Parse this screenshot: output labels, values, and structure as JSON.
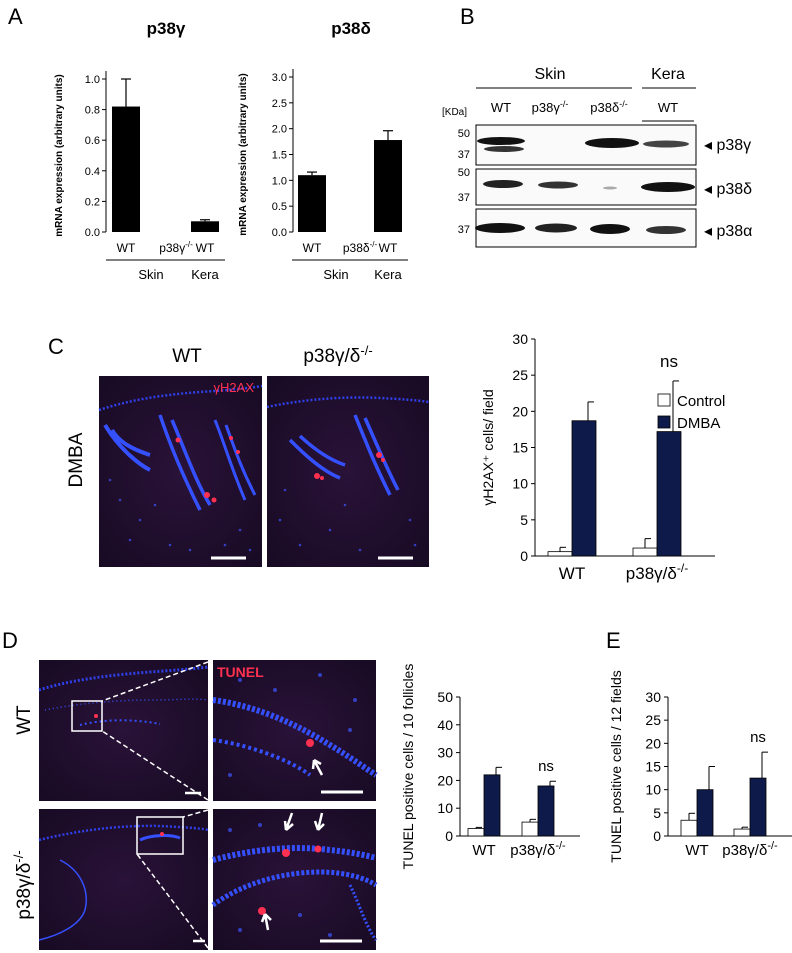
{
  "panel_labels": {
    "a": "A",
    "b": "B",
    "c": "C",
    "d": "D",
    "e": "E"
  },
  "colors": {
    "dmba": "#0d1a4a",
    "control": "#ffffff",
    "bar_black": "#000000",
    "tissue_bg": "#241030",
    "nuclei": "#2a3ee0",
    "stain": "#ff3050"
  },
  "blot": {
    "group_skin": "Skin",
    "group_kera": "Kera",
    "kda_label": "[KDa]",
    "lanes": [
      "WT",
      "p38γ",
      "p38δ",
      "WT"
    ],
    "lane_sups": [
      "",
      "-/-",
      "-/-",
      ""
    ],
    "rows": [
      {
        "label": "p38γ",
        "markers": [
          "50",
          "37"
        ]
      },
      {
        "label": "p38δ",
        "markers": [
          "50",
          "37"
        ]
      },
      {
        "label": "p38α",
        "markers": [
          "37"
        ]
      }
    ]
  },
  "micrographs": {
    "c_col_wt": "WT",
    "c_col_ko": "p38γ/δ",
    "c_col_ko_sup": "-/-",
    "c_row": "DMBA",
    "c_stain": "γH2AX",
    "d_row_wt": "WT",
    "d_row_ko": "p38γ/δ",
    "d_row_ko_sup": "-/-",
    "d_stain": "TUNEL"
  },
  "chart_data": [
    {
      "id": "A1",
      "type": "bar",
      "title": "p38γ",
      "ylabel": "mRNA expression (arbitrary units)",
      "ylim": [
        0,
        1.0
      ],
      "yticks": [
        "0.0",
        "0.2",
        "0.4",
        "0.6",
        "0.8",
        "1.0"
      ],
      "categories": [
        "WT",
        "p38γ",
        "WT"
      ],
      "category_sups": [
        "",
        "-/-",
        ""
      ],
      "groups": [
        {
          "label": "Skin",
          "span": [
            0,
            1
          ]
        },
        {
          "label": "Kera",
          "span": [
            2,
            2
          ]
        }
      ],
      "values": [
        0.82,
        0,
        0.07
      ],
      "errors": [
        0.18,
        0,
        0.01
      ]
    },
    {
      "id": "A2",
      "type": "bar",
      "title": "p38δ",
      "ylabel": "mRNA expression (arbitrary units)",
      "ylim": [
        0,
        3.0
      ],
      "yticks": [
        "0.0",
        "0.5",
        "1.0",
        "1.5",
        "2.0",
        "2.5",
        "3.0"
      ],
      "categories": [
        "WT",
        "p38δ",
        "WT"
      ],
      "category_sups": [
        "",
        "-/-",
        ""
      ],
      "groups": [
        {
          "label": "Skin",
          "span": [
            0,
            1
          ]
        },
        {
          "label": "Kera",
          "span": [
            2,
            2
          ]
        }
      ],
      "values": [
        1.1,
        0,
        1.78
      ],
      "errors": [
        0.06,
        0,
        0.18
      ]
    },
    {
      "id": "C",
      "type": "bar",
      "ylabel": "γH2AX⁺ cells/ field",
      "ylim": [
        0,
        30
      ],
      "yticks": [
        "0",
        "5",
        "10",
        "15",
        "20",
        "25",
        "30"
      ],
      "categories": [
        "WT",
        "p38γ/δ"
      ],
      "category_sups": [
        "",
        "-/-"
      ],
      "legend": [
        "Control",
        "DMBA"
      ],
      "series": [
        {
          "name": "Control",
          "values": [
            0.6,
            1.1
          ],
          "errors": [
            0.6,
            1.3
          ]
        },
        {
          "name": "DMBA",
          "values": [
            18.7,
            17.2
          ],
          "errors": [
            2.6,
            7.0
          ]
        }
      ],
      "annotations": [
        "",
        "ns"
      ]
    },
    {
      "id": "D",
      "type": "bar",
      "ylabel": "TUNEL positive cells / 10 follicles",
      "ylim": [
        0,
        50
      ],
      "yticks": [
        "0",
        "10",
        "20",
        "30",
        "40",
        "50"
      ],
      "categories": [
        "WT",
        "p38γ/δ"
      ],
      "category_sups": [
        "",
        "-/-"
      ],
      "series": [
        {
          "name": "Control",
          "values": [
            2.7,
            5.0
          ],
          "errors": [
            0.4,
            1.0
          ]
        },
        {
          "name": "DMBA",
          "values": [
            22,
            18
          ],
          "errors": [
            2.7,
            1.7
          ]
        }
      ],
      "annotations": [
        "",
        "ns"
      ]
    },
    {
      "id": "E",
      "type": "bar",
      "ylabel": "TUNEL positive cells / 12 fields",
      "ylim": [
        0,
        30
      ],
      "yticks": [
        "0",
        "5",
        "10",
        "15",
        "20",
        "25",
        "30"
      ],
      "categories": [
        "WT",
        "p38γ/δ"
      ],
      "category_sups": [
        "",
        "-/-"
      ],
      "series": [
        {
          "name": "Control",
          "values": [
            3.4,
            1.5
          ],
          "errors": [
            1.5,
            0.4
          ]
        },
        {
          "name": "DMBA",
          "values": [
            10,
            12.5
          ],
          "errors": [
            5,
            5.6
          ]
        }
      ],
      "annotations": [
        "",
        "ns"
      ]
    }
  ]
}
